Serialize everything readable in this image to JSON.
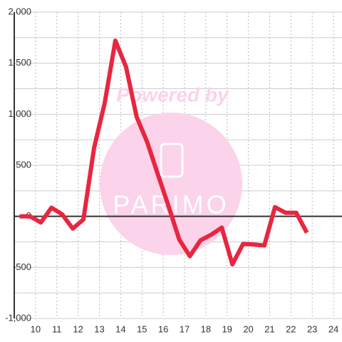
{
  "chart_data": {
    "type": "line",
    "watermark": [
      "Powered by",
      "PARIMO"
    ],
    "x": [
      9.25,
      9.75,
      10.25,
      10.75,
      11.25,
      11.75,
      12.25,
      12.75,
      13.25,
      13.75,
      14.25,
      14.75,
      15.25,
      15.75,
      16.25,
      16.75,
      17.25,
      17.75,
      18.25,
      18.75,
      19.25,
      19.75,
      20.25,
      20.75,
      21.25,
      21.75,
      22.25,
      22.75
    ],
    "series": [
      {
        "color": "#e8263f",
        "values": [
          0,
          0,
          -60,
          85,
          20,
          -120,
          -30,
          670,
          1110,
          1720,
          1465,
          975,
          725,
          410,
          100,
          -225,
          -390,
          -235,
          -180,
          -110,
          -470,
          -270,
          -275,
          -285,
          90,
          35,
          35,
          -160
        ]
      }
    ],
    "xlim": [
      9,
      24.4
    ],
    "xticks": [
      10,
      11,
      12,
      13,
      14,
      15,
      16,
      17,
      18,
      19,
      20,
      21,
      22,
      23,
      24
    ],
    "ylim": [
      -1000,
      2000
    ],
    "yticks": [
      {
        "value": -1000,
        "label": "-1,000"
      },
      -500,
      0,
      500,
      {
        "value": 1000,
        "label": "1,000"
      },
      {
        "value": 1500,
        "label": "1,500"
      },
      {
        "value": 2000,
        "label": "2,000"
      }
    ],
    "yminorticks": [
      -750,
      -250,
      250,
      750,
      1250,
      1750
    ],
    "grid": true
  }
}
